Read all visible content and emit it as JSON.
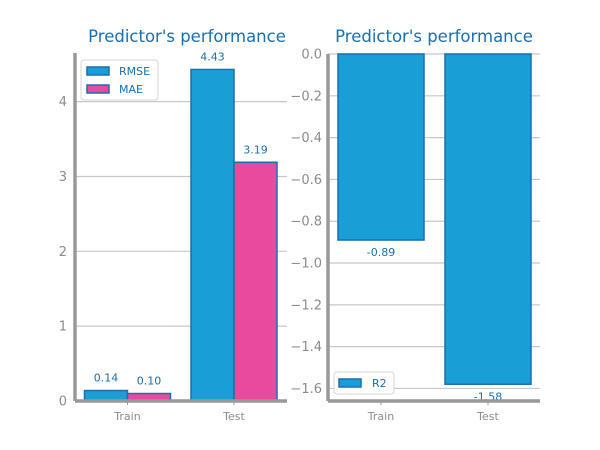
{
  "chart_data": [
    {
      "type": "bar",
      "title": "Predictor's performance",
      "categories": [
        "Train",
        "Test"
      ],
      "series": [
        {
          "name": "RMSE",
          "values": [
            0.14,
            4.43
          ],
          "labels": [
            "0.14",
            "4.43"
          ],
          "color": "#199ed6",
          "edge": "#1a6fb0"
        },
        {
          "name": "MAE",
          "values": [
            0.1,
            3.19
          ],
          "labels": [
            "0.10",
            "3.19"
          ],
          "color": "#ea4a9e",
          "edge": "#1a6fb0"
        }
      ],
      "yticks": [
        0,
        1,
        2,
        3,
        4
      ],
      "ylim": [
        0,
        4.65
      ],
      "grid": true,
      "legend": "top-left",
      "xlabel": "",
      "ylabel": ""
    },
    {
      "type": "bar",
      "title": "Predictor's performance",
      "categories": [
        "Train",
        "Test"
      ],
      "series": [
        {
          "name": "R2",
          "values": [
            -0.89,
            -1.58
          ],
          "labels": [
            "-0.89",
            "-1.58"
          ],
          "color": "#199ed6",
          "edge": "#1a6fb0"
        }
      ],
      "yticks": [
        0.0,
        -0.2,
        -0.4,
        -0.6,
        -0.8,
        -1.0,
        -1.2,
        -1.4,
        -1.6
      ],
      "ytick_labels": [
        "0.0",
        "−0.2",
        "−0.4",
        "−0.6",
        "−0.8",
        "−1.0",
        "−1.2",
        "−1.4",
        "−1.6"
      ],
      "ylim": [
        -1.66,
        0
      ],
      "grid": true,
      "legend": "bottom-left",
      "xlabel": "",
      "ylabel": ""
    }
  ]
}
